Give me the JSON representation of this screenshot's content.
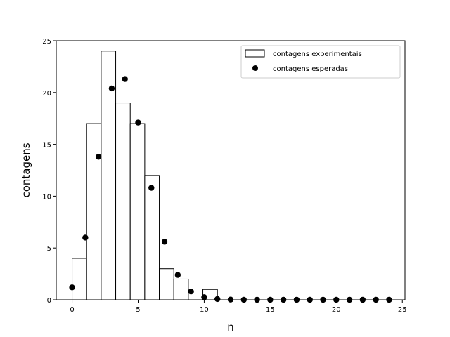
{
  "chart_data": {
    "type": "bar+scatter",
    "xlabel": "n",
    "ylabel": "contagens",
    "xlim": [
      -1.2,
      25.2
    ],
    "ylim": [
      0,
      25
    ],
    "xticks": [
      0,
      5,
      10,
      15,
      20,
      25
    ],
    "yticks": [
      0,
      5,
      10,
      15,
      20,
      25
    ],
    "grid": false,
    "legend_position": "top-right",
    "series": [
      {
        "name": "contagens experimentais",
        "kind": "bar",
        "x": [
          0,
          1,
          2,
          3,
          4,
          5,
          6,
          7,
          8,
          9,
          10
        ],
        "values": [
          4,
          17,
          24,
          19,
          17,
          12,
          3,
          2,
          0,
          1,
          0
        ],
        "bin_edges": [
          0,
          1.1,
          2.2,
          3.3,
          4.4,
          5.5,
          6.6,
          7.7,
          8.8,
          9.9,
          11
        ],
        "fill_color": "#ffffff",
        "edge_color": "#000000"
      },
      {
        "name": "contagens esperadas",
        "kind": "scatter",
        "x": [
          0,
          1,
          2,
          3,
          4,
          5,
          6,
          7,
          8,
          9,
          10,
          11,
          12,
          13,
          14,
          15,
          16,
          17,
          18,
          19,
          20,
          21,
          22,
          23,
          24
        ],
        "values": [
          1.2,
          6.0,
          13.8,
          20.4,
          21.3,
          17.1,
          10.8,
          5.6,
          2.4,
          0.8,
          0.25,
          0.07,
          0.02,
          0,
          0,
          0,
          0,
          0,
          0,
          0,
          0,
          0,
          0,
          0,
          0
        ],
        "marker_color": "#000000"
      }
    ]
  }
}
